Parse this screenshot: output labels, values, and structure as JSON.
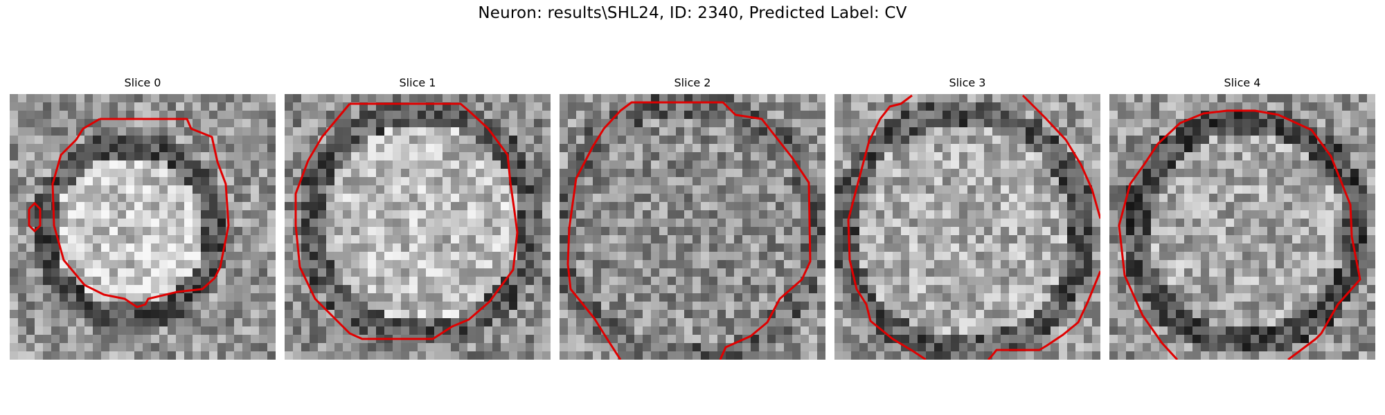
{
  "figure": {
    "title": "Neuron: results\\SHL24, ID: 2340, Predicted Label: CV",
    "contour_color": "#e00000",
    "colormap": "grayscale",
    "grid_cells_per_side": 32
  },
  "slices": [
    {
      "title": "Slice 0"
    },
    {
      "title": "Slice 1"
    },
    {
      "title": "Slice 2"
    },
    {
      "title": "Slice 3"
    },
    {
      "title": "Slice 4"
    }
  ]
}
